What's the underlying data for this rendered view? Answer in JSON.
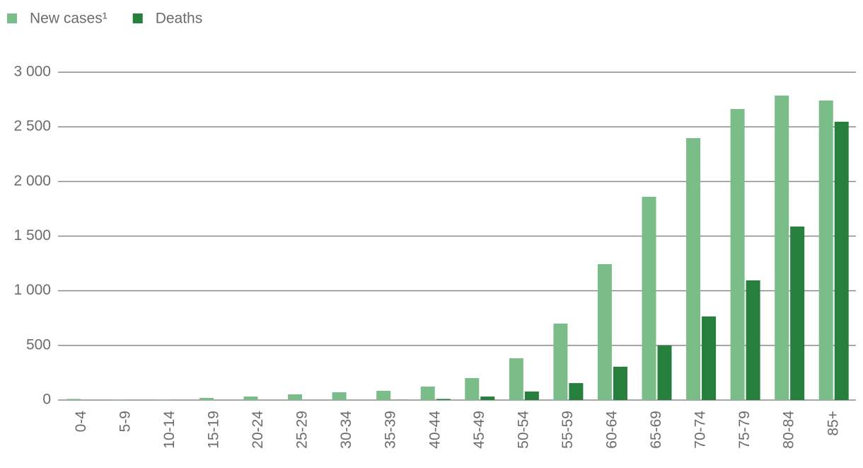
{
  "chart_data": {
    "type": "bar",
    "categories": [
      "0-4",
      "5-9",
      "10-14",
      "15-19",
      "20-24",
      "25-29",
      "30-34",
      "35-39",
      "40-44",
      "45-49",
      "50-54",
      "55-59",
      "60-64",
      "65-69",
      "70-74",
      "75-79",
      "80-84",
      "85+"
    ],
    "series": [
      {
        "name": "New cases¹",
        "color": "#7bbd89",
        "values": [
          10,
          3,
          3,
          20,
          32,
          52,
          71,
          84,
          123,
          201,
          382,
          700,
          1244,
          1860,
          2397,
          2663,
          2786,
          2741
        ]
      },
      {
        "name": "Deaths",
        "color": "#267f3c",
        "values": [
          0,
          0,
          0,
          0,
          0,
          0,
          0,
          1,
          10,
          32,
          78,
          155,
          305,
          499,
          765,
          1095,
          1588,
          2547
        ]
      }
    ],
    "ylim": [
      0,
      3000
    ],
    "yticks": [
      0,
      500,
      {
        "value": 1000,
        "label": "1 000"
      },
      {
        "value": 1500,
        "label": "1 500"
      },
      {
        "value": 2000,
        "label": "2 000"
      },
      {
        "value": 2500,
        "label": "2 500"
      },
      {
        "value": 3000,
        "label": "3 000"
      }
    ],
    "grid": true,
    "legend": "top-left"
  }
}
